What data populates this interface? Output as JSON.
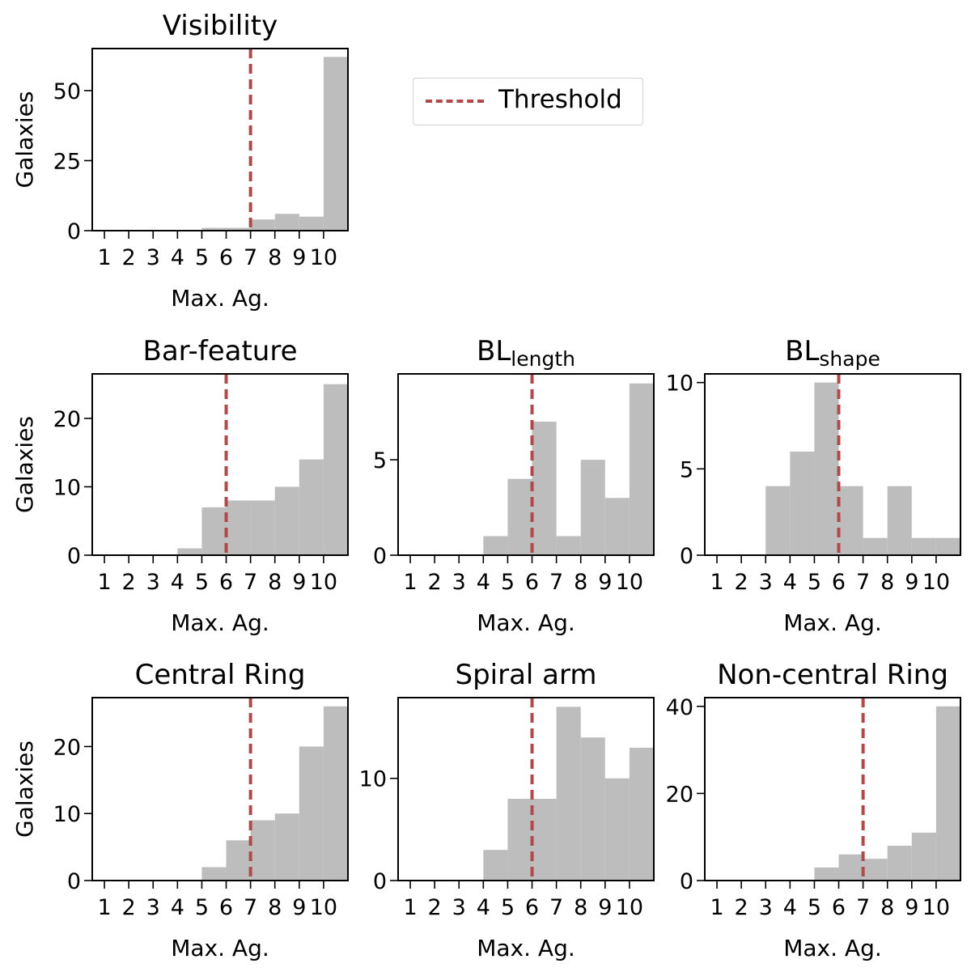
{
  "legend": {
    "label": "Threshold",
    "location": "upper-right area of first row"
  },
  "colors": {
    "bar": "#bdbdbd",
    "threshold": "#b04a4a"
  },
  "chart_data": [
    {
      "type": "bar",
      "title": "Visibility",
      "xlabel": "Max. Ag.",
      "ylabel": "Galaxies",
      "categories": [
        "1",
        "2",
        "3",
        "4",
        "5",
        "6",
        "7",
        "8",
        "9",
        "10"
      ],
      "xticks": [
        "1",
        "2",
        "3",
        "4",
        "5",
        "6",
        "7",
        "8",
        "9",
        "10"
      ],
      "values": [
        0,
        0,
        0,
        0,
        1,
        1,
        4,
        6,
        5,
        62
      ],
      "xlim": [
        0.5,
        11
      ],
      "ylim": [
        0,
        65
      ],
      "yticks": [
        0,
        25,
        50
      ],
      "threshold": 7,
      "grid": false
    },
    {
      "type": "bar",
      "title": "Bar-feature",
      "xlabel": "Max. Ag.",
      "ylabel": "Galaxies",
      "categories": [
        "1",
        "2",
        "3",
        "4",
        "5",
        "6",
        "7",
        "8",
        "9",
        "10"
      ],
      "xticks": [
        "1",
        "2",
        "3",
        "4",
        "5",
        "6",
        "7",
        "8",
        "9",
        "10"
      ],
      "values": [
        0,
        0,
        0,
        1,
        7,
        8,
        8,
        10,
        14,
        25
      ],
      "xlim": [
        0.5,
        11
      ],
      "ylim": [
        0,
        26.5
      ],
      "yticks": [
        0,
        10,
        20
      ],
      "threshold": 6,
      "grid": false
    },
    {
      "type": "bar",
      "title": "BL",
      "title_sub": "length",
      "xlabel": "Max. Ag.",
      "ylabel": "",
      "categories": [
        "1",
        "2",
        "3",
        "4",
        "5",
        "6",
        "7",
        "8",
        "9",
        "10"
      ],
      "xticks": [
        "1",
        "2",
        "3",
        "4",
        "5",
        "6",
        "7",
        "8",
        "9",
        "10"
      ],
      "values": [
        0,
        0,
        0,
        1,
        4,
        7,
        1,
        5,
        3,
        9
      ],
      "xlim": [
        0.5,
        11
      ],
      "ylim": [
        0,
        9.5
      ],
      "yticks": [
        0,
        5
      ],
      "threshold": 6,
      "grid": false
    },
    {
      "type": "bar",
      "title": "BL",
      "title_sub": "shape",
      "xlabel": "Max. Ag.",
      "ylabel": "",
      "categories": [
        "1",
        "2",
        "3",
        "4",
        "5",
        "6",
        "7",
        "8",
        "9",
        "10"
      ],
      "xticks": [
        "1",
        "2",
        "3",
        "4",
        "5",
        "6",
        "7",
        "8",
        "9",
        "10"
      ],
      "values": [
        0,
        0,
        4,
        6,
        10,
        4,
        1,
        4,
        1,
        1
      ],
      "xlim": [
        0.5,
        11
      ],
      "ylim": [
        0,
        10.5
      ],
      "yticks": [
        0,
        5,
        10
      ],
      "threshold": 6,
      "grid": false
    },
    {
      "type": "bar",
      "title": "Central Ring",
      "xlabel": "Max. Ag.",
      "ylabel": "Galaxies",
      "categories": [
        "1",
        "2",
        "3",
        "4",
        "5",
        "6",
        "7",
        "8",
        "9",
        "10"
      ],
      "xticks": [
        "1",
        "2",
        "3",
        "4",
        "5",
        "6",
        "7",
        "8",
        "9",
        "10"
      ],
      "values": [
        0,
        0,
        0,
        0,
        2,
        6,
        9,
        10,
        20,
        26
      ],
      "xlim": [
        0.5,
        11
      ],
      "ylim": [
        0,
        27.3
      ],
      "yticks": [
        0,
        10,
        20
      ],
      "threshold": 7,
      "grid": false
    },
    {
      "type": "bar",
      "title": "Spiral arm",
      "xlabel": "Max. Ag.",
      "ylabel": "",
      "categories": [
        "1",
        "2",
        "3",
        "4",
        "5",
        "6",
        "7",
        "8",
        "9",
        "10"
      ],
      "xticks": [
        "1",
        "2",
        "3",
        "4",
        "5",
        "6",
        "7",
        "8",
        "9",
        "10"
      ],
      "values": [
        0,
        0,
        0,
        3,
        8,
        8,
        17,
        14,
        10,
        13
      ],
      "xlim": [
        0.5,
        11
      ],
      "ylim": [
        0,
        17.9
      ],
      "yticks": [
        0,
        10
      ],
      "threshold": 6,
      "grid": false
    },
    {
      "type": "bar",
      "title": "Non-central Ring",
      "xlabel": "Max. Ag.",
      "ylabel": "",
      "categories": [
        "1",
        "2",
        "3",
        "4",
        "5",
        "6",
        "7",
        "8",
        "9",
        "10"
      ],
      "xticks": [
        "1",
        "2",
        "3",
        "4",
        "5",
        "6",
        "7",
        "8",
        "9",
        "10"
      ],
      "values": [
        0,
        0,
        0,
        0,
        3,
        6,
        5,
        8,
        11,
        40
      ],
      "xlim": [
        0.5,
        11
      ],
      "ylim": [
        0,
        42
      ],
      "yticks": [
        0,
        20,
        40
      ],
      "threshold": 7,
      "grid": false
    }
  ]
}
